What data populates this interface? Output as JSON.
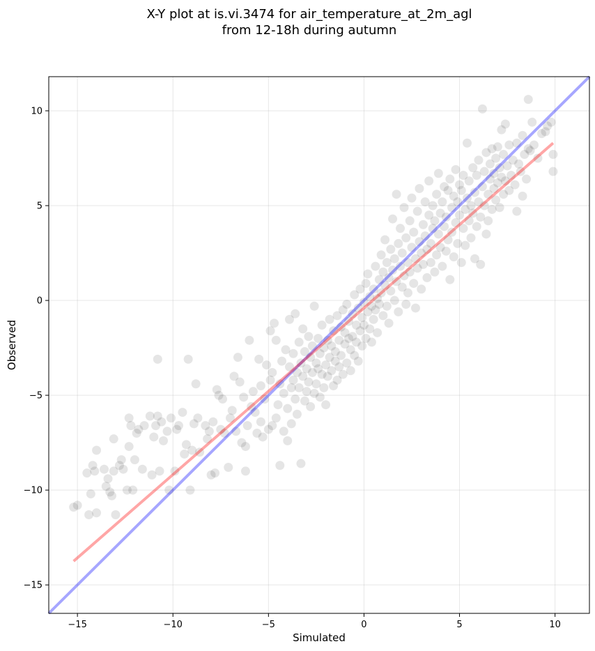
{
  "chart_data": {
    "type": "scatter",
    "title": "X-Y plot at is.vi.3474 for air_temperature_at_2m_agl",
    "subtitle": "from 12-18h during autumn",
    "xlabel": "Simulated",
    "ylabel": "Observed",
    "xlim": [
      -16.5,
      11.8
    ],
    "ylim": [
      -16.5,
      11.8
    ],
    "xticks": [
      -15,
      -10,
      -5,
      0,
      5,
      10
    ],
    "yticks": [
      -15,
      -10,
      -5,
      0,
      5,
      10
    ],
    "xtick_labels": [
      "−15",
      "−10",
      "−5",
      "0",
      "5",
      "10"
    ],
    "ytick_labels": [
      "−15",
      "−10",
      "−5",
      "0",
      "5",
      "10"
    ],
    "grid": true,
    "point_color": "#000000",
    "point_opacity": 0.1,
    "points": [
      [
        -15.2,
        -10.9
      ],
      [
        -15.0,
        -10.8
      ],
      [
        -14.5,
        -9.1
      ],
      [
        -14.4,
        -11.3
      ],
      [
        -14.3,
        -10.2
      ],
      [
        -14.2,
        -8.7
      ],
      [
        -14.1,
        -9.0
      ],
      [
        -14.0,
        -7.9
      ],
      [
        -14.0,
        -11.2
      ],
      [
        -13.6,
        -8.9
      ],
      [
        -13.5,
        -9.8
      ],
      [
        -13.4,
        -9.4
      ],
      [
        -13.3,
        -10.1
      ],
      [
        -13.2,
        -10.3
      ],
      [
        -13.1,
        -9.0
      ],
      [
        -13.1,
        -7.3
      ],
      [
        -13.0,
        -11.3
      ],
      [
        -12.8,
        -8.7
      ],
      [
        -12.7,
        -8.4
      ],
      [
        -12.6,
        -8.9
      ],
      [
        -12.4,
        -10.0
      ],
      [
        -12.3,
        -7.7
      ],
      [
        -12.3,
        -6.2
      ],
      [
        -12.2,
        -6.6
      ],
      [
        -12.1,
        -10.0
      ],
      [
        -12.0,
        -8.4
      ],
      [
        -11.9,
        -7.0
      ],
      [
        -11.8,
        -6.8
      ],
      [
        -11.6,
        -8.9
      ],
      [
        -11.5,
        -6.6
      ],
      [
        -11.2,
        -6.1
      ],
      [
        -11.1,
        -9.2
      ],
      [
        -11.0,
        -7.2
      ],
      [
        -10.9,
        -6.6
      ],
      [
        -10.8,
        -3.1
      ],
      [
        -10.8,
        -6.1
      ],
      [
        -10.7,
        -9.0
      ],
      [
        -10.6,
        -6.4
      ],
      [
        -10.5,
        -7.4
      ],
      [
        -10.3,
        -6.9
      ],
      [
        -10.2,
        -10.0
      ],
      [
        -10.1,
        -6.2
      ],
      [
        -9.9,
        -9.0
      ],
      [
        -9.8,
        -6.8
      ],
      [
        -9.7,
        -6.6
      ],
      [
        -9.5,
        -5.9
      ],
      [
        -9.4,
        -8.1
      ],
      [
        -9.3,
        -7.6
      ],
      [
        -9.2,
        -3.1
      ],
      [
        -9.1,
        -10.0
      ],
      [
        -9.0,
        -7.9
      ],
      [
        -8.9,
        -6.5
      ],
      [
        -8.8,
        -4.4
      ],
      [
        -8.7,
        -6.2
      ],
      [
        -8.6,
        -8.0
      ],
      [
        -8.3,
        -6.6
      ],
      [
        -8.2,
        -7.3
      ],
      [
        -8.1,
        -6.9
      ],
      [
        -8.0,
        -9.2
      ],
      [
        -7.9,
        -6.4
      ],
      [
        -7.8,
        -9.1
      ],
      [
        -7.7,
        -4.7
      ],
      [
        -7.6,
        -5.0
      ],
      [
        -7.5,
        -6.8
      ],
      [
        -7.4,
        -5.2
      ],
      [
        -7.3,
        -7.0
      ],
      [
        -7.1,
        -8.8
      ],
      [
        -7.0,
        -6.2
      ],
      [
        -6.9,
        -5.8
      ],
      [
        -6.8,
        -4.0
      ],
      [
        -6.7,
        -6.9
      ],
      [
        -6.6,
        -3.0
      ],
      [
        -6.5,
        -4.3
      ],
      [
        -6.4,
        -7.5
      ],
      [
        -6.3,
        -5.1
      ],
      [
        -6.2,
        -7.7
      ],
      [
        -6.2,
        -9.0
      ],
      [
        -6.1,
        -6.6
      ],
      [
        -6.0,
        -2.1
      ],
      [
        -5.9,
        -5.6
      ],
      [
        -5.8,
        -4.8
      ],
      [
        -5.7,
        -5.9
      ],
      [
        -5.6,
        -7.0
      ],
      [
        -5.5,
        -3.1
      ],
      [
        -5.4,
        -6.4
      ],
      [
        -5.4,
        -4.5
      ],
      [
        -5.3,
        -7.2
      ],
      [
        -5.2,
        -5.2
      ],
      [
        -5.1,
        -3.4
      ],
      [
        -5.0,
        -6.8
      ],
      [
        -4.9,
        -4.2
      ],
      [
        -4.9,
        -1.6
      ],
      [
        -4.8,
        -6.6
      ],
      [
        -4.8,
        -3.8
      ],
      [
        -4.7,
        -1.2
      ],
      [
        -4.6,
        -6.2
      ],
      [
        -4.6,
        -2.1
      ],
      [
        -4.5,
        -5.5
      ],
      [
        -4.4,
        -4.4
      ],
      [
        -4.4,
        -8.7
      ],
      [
        -4.3,
        -3.2
      ],
      [
        -4.2,
        -6.9
      ],
      [
        -4.2,
        -4.9
      ],
      [
        -4.1,
        -2.6
      ],
      [
        -4.0,
        -5.7
      ],
      [
        -4.0,
        -7.4
      ],
      [
        -3.9,
        -3.5
      ],
      [
        -3.9,
        -1.0
      ],
      [
        -3.8,
        -4.6
      ],
      [
        -3.8,
        -6.5
      ],
      [
        -3.7,
        -2.8
      ],
      [
        -3.7,
        -4.2
      ],
      [
        -3.6,
        -5.2
      ],
      [
        -3.6,
        -0.7
      ],
      [
        -3.5,
        -3.8
      ],
      [
        -3.5,
        -6.0
      ],
      [
        -3.4,
        -2.2
      ],
      [
        -3.4,
        -4.6
      ],
      [
        -3.3,
        -3.3
      ],
      [
        -3.3,
        -8.6
      ],
      [
        -3.2,
        -1.5
      ],
      [
        -3.2,
        -4.0
      ],
      [
        -3.1,
        -5.3
      ],
      [
        -3.1,
        -2.7
      ],
      [
        -3.0,
        -3.6
      ],
      [
        -3.0,
        -4.8
      ],
      [
        -2.9,
        -1.9
      ],
      [
        -2.9,
        -4.3
      ],
      [
        -2.8,
        -3.0
      ],
      [
        -2.8,
        -5.6
      ],
      [
        -2.7,
        -2.4
      ],
      [
        -2.7,
        -3.8
      ],
      [
        -2.6,
        -4.9
      ],
      [
        -2.6,
        -0.3
      ],
      [
        -2.5,
        -3.3
      ],
      [
        -2.5,
        -4.4
      ],
      [
        -2.4,
        -2.0
      ],
      [
        -2.4,
        -3.6
      ],
      [
        -2.3,
        -5.1
      ],
      [
        -2.3,
        -2.8
      ],
      [
        -2.2,
        -3.9
      ],
      [
        -2.2,
        -1.3
      ],
      [
        -2.1,
        -4.6
      ],
      [
        -2.1,
        -2.5
      ],
      [
        -2.0,
        -3.4
      ],
      [
        -2.0,
        -5.5
      ],
      [
        -1.9,
        -2.1
      ],
      [
        -1.9,
        -4.0
      ],
      [
        -1.8,
        -3.0
      ],
      [
        -1.8,
        -1.0
      ],
      [
        -1.7,
        -3.7
      ],
      [
        -1.7,
        -2.4
      ],
      [
        -1.6,
        -4.5
      ],
      [
        -1.6,
        -1.6
      ],
      [
        -1.5,
        -3.2
      ],
      [
        -1.5,
        -2.7
      ],
      [
        -1.4,
        -4.2
      ],
      [
        -1.4,
        -0.8
      ],
      [
        -1.3,
        -2.1
      ],
      [
        -1.3,
        -3.5
      ],
      [
        -1.2,
        -1.4
      ],
      [
        -1.2,
        -2.9
      ],
      [
        -1.1,
        -3.9
      ],
      [
        -1.1,
        -0.5
      ],
      [
        -1.0,
        -2.3
      ],
      [
        -1.0,
        -1.7
      ],
      [
        -0.9,
        -3.3
      ],
      [
        -0.9,
        -0.2
      ],
      [
        -0.8,
        -2.0
      ],
      [
        -0.8,
        -1.1
      ],
      [
        -0.7,
        -2.6
      ],
      [
        -0.7,
        -3.7
      ],
      [
        -0.6,
        -0.7
      ],
      [
        -0.6,
        -1.9
      ],
      [
        -0.5,
        -2.9
      ],
      [
        -0.5,
        0.3
      ],
      [
        -0.4,
        -1.3
      ],
      [
        -0.4,
        -2.2
      ],
      [
        -0.3,
        -0.4
      ],
      [
        -0.3,
        -3.2
      ],
      [
        -0.2,
        -1.6
      ],
      [
        -0.2,
        0.6
      ],
      [
        -0.1,
        -0.9
      ],
      [
        -0.1,
        -2.4
      ],
      [
        0.0,
        -0.1
      ],
      [
        0.0,
        -1.3
      ],
      [
        0.1,
        0.9
      ],
      [
        0.1,
        -2.0
      ],
      [
        0.2,
        -0.6
      ],
      [
        0.2,
        1.4
      ],
      [
        0.3,
        -1.5
      ],
      [
        0.3,
        0.2
      ],
      [
        0.4,
        -0.3
      ],
      [
        0.4,
        -2.2
      ],
      [
        0.5,
        0.6
      ],
      [
        0.5,
        -1.0
      ],
      [
        0.6,
        1.8
      ],
      [
        0.6,
        -0.5
      ],
      [
        0.7,
        0.1
      ],
      [
        0.7,
        -1.7
      ],
      [
        0.8,
        1.1
      ],
      [
        0.8,
        -0.2
      ],
      [
        0.9,
        2.4
      ],
      [
        0.9,
        0.4
      ],
      [
        1.0,
        -0.8
      ],
      [
        1.0,
        1.5
      ],
      [
        1.1,
        0.8
      ],
      [
        1.1,
        3.2
      ],
      [
        1.2,
        -0.3
      ],
      [
        1.2,
        2.0
      ],
      [
        1.3,
        1.2
      ],
      [
        1.3,
        -1.2
      ],
      [
        1.4,
        0.5
      ],
      [
        1.4,
        2.7
      ],
      [
        1.5,
        1.6
      ],
      [
        1.5,
        4.3
      ],
      [
        1.6,
        0.0
      ],
      [
        1.6,
        2.2
      ],
      [
        1.7,
        1.0
      ],
      [
        1.7,
        5.6
      ],
      [
        1.8,
        3.0
      ],
      [
        1.8,
        -0.6
      ],
      [
        1.9,
        1.8
      ],
      [
        1.9,
        3.8
      ],
      [
        2.0,
        0.7
      ],
      [
        2.0,
        2.5
      ],
      [
        2.1,
        4.9
      ],
      [
        2.1,
        1.3
      ],
      [
        2.2,
        -0.2
      ],
      [
        2.2,
        3.3
      ],
      [
        2.3,
        2.0
      ],
      [
        2.3,
        0.4
      ],
      [
        2.4,
        4.2
      ],
      [
        2.4,
        1.5
      ],
      [
        2.5,
        2.8
      ],
      [
        2.5,
        5.4
      ],
      [
        2.6,
        0.9
      ],
      [
        2.6,
        3.6
      ],
      [
        2.7,
        2.2
      ],
      [
        2.7,
        -0.4
      ],
      [
        2.8,
        4.7
      ],
      [
        2.8,
        1.7
      ],
      [
        2.9,
        3.1
      ],
      [
        2.9,
        5.9
      ],
      [
        3.0,
        2.5
      ],
      [
        3.0,
        0.6
      ],
      [
        3.1,
        4.0
      ],
      [
        3.1,
        1.9
      ],
      [
        3.2,
        5.2
      ],
      [
        3.2,
        3.4
      ],
      [
        3.3,
        2.7
      ],
      [
        3.3,
        1.2
      ],
      [
        3.4,
        4.5
      ],
      [
        3.4,
        6.3
      ],
      [
        3.5,
        3.0
      ],
      [
        3.5,
        2.0
      ],
      [
        3.6,
        5.0
      ],
      [
        3.6,
        3.8
      ],
      [
        3.7,
        1.5
      ],
      [
        3.7,
        4.2
      ],
      [
        3.8,
        2.4
      ],
      [
        3.8,
        5.6
      ],
      [
        3.9,
        3.5
      ],
      [
        3.9,
        6.7
      ],
      [
        4.0,
        2.8
      ],
      [
        4.0,
        4.6
      ],
      [
        4.1,
        1.8
      ],
      [
        4.1,
        5.2
      ],
      [
        4.2,
        3.9
      ],
      [
        4.2,
        6.0
      ],
      [
        4.3,
        2.6
      ],
      [
        4.3,
        4.4
      ],
      [
        4.4,
        5.8
      ],
      [
        4.4,
        3.2
      ],
      [
        4.5,
        6.4
      ],
      [
        4.5,
        1.1
      ],
      [
        4.6,
        4.9
      ],
      [
        4.6,
        3.6
      ],
      [
        4.7,
        5.5
      ],
      [
        4.7,
        2.3
      ],
      [
        4.8,
        6.9
      ],
      [
        4.8,
        4.1
      ],
      [
        4.9,
        5.2
      ],
      [
        4.9,
        3.0
      ],
      [
        5.0,
        6.1
      ],
      [
        5.0,
        4.5
      ],
      [
        5.1,
        2.0
      ],
      [
        5.1,
        5.8
      ],
      [
        5.2,
        3.8
      ],
      [
        5.2,
        6.6
      ],
      [
        5.3,
        4.8
      ],
      [
        5.3,
        2.9
      ],
      [
        5.4,
        5.4
      ],
      [
        5.4,
        8.3
      ],
      [
        5.5,
        4.2
      ],
      [
        5.5,
        6.3
      ],
      [
        5.6,
        3.3
      ],
      [
        5.6,
        5.0
      ],
      [
        5.7,
        7.0
      ],
      [
        5.7,
        4.6
      ],
      [
        5.8,
        2.2
      ],
      [
        5.8,
        5.7
      ],
      [
        5.9,
        6.6
      ],
      [
        5.9,
        3.9
      ],
      [
        6.0,
        5.2
      ],
      [
        6.0,
        7.4
      ],
      [
        6.1,
        4.4
      ],
      [
        6.1,
        1.9
      ],
      [
        6.2,
        6.0
      ],
      [
        6.2,
        10.1
      ],
      [
        6.3,
        5.0
      ],
      [
        6.3,
        6.8
      ],
      [
        6.4,
        3.5
      ],
      [
        6.4,
        7.8
      ],
      [
        6.5,
        5.6
      ],
      [
        6.5,
        4.2
      ],
      [
        6.6,
        6.4
      ],
      [
        6.6,
        7.2
      ],
      [
        6.7,
        4.8
      ],
      [
        6.7,
        8.0
      ],
      [
        6.8,
        5.9
      ],
      [
        6.8,
        6.7
      ],
      [
        6.9,
        7.5
      ],
      [
        6.9,
        5.3
      ],
      [
        7.0,
        6.2
      ],
      [
        7.0,
        8.1
      ],
      [
        7.1,
        4.9
      ],
      [
        7.1,
        7.0
      ],
      [
        7.2,
        6.5
      ],
      [
        7.2,
        9.0
      ],
      [
        7.3,
        7.7
      ],
      [
        7.3,
        5.6
      ],
      [
        7.4,
        9.3
      ],
      [
        7.4,
        6.3
      ],
      [
        7.5,
        7.1
      ],
      [
        7.6,
        5.8
      ],
      [
        7.6,
        8.2
      ],
      [
        7.7,
        6.6
      ],
      [
        7.8,
        7.4
      ],
      [
        7.9,
        6.1
      ],
      [
        8.0,
        8.3
      ],
      [
        8.0,
        4.7
      ],
      [
        8.1,
        7.2
      ],
      [
        8.2,
        6.8
      ],
      [
        8.3,
        8.7
      ],
      [
        8.3,
        5.5
      ],
      [
        8.4,
        7.7
      ],
      [
        8.5,
        6.4
      ],
      [
        8.6,
        8.0
      ],
      [
        8.6,
        10.6
      ],
      [
        8.7,
        7.9
      ],
      [
        8.8,
        9.4
      ],
      [
        8.9,
        8.2
      ],
      [
        9.1,
        7.5
      ],
      [
        9.3,
        8.8
      ],
      [
        9.5,
        8.9
      ],
      [
        9.6,
        9.2
      ],
      [
        9.8,
        9.4
      ],
      [
        9.9,
        7.7
      ],
      [
        9.9,
        6.8
      ]
    ],
    "lines": [
      {
        "color": "#0000ff",
        "opacity": 0.35,
        "x": [
          -16.5,
          11.8
        ],
        "y": [
          -16.5,
          11.8
        ]
      },
      {
        "color": "#ff0000",
        "opacity": 0.35,
        "x": [
          -15.2,
          9.9
        ],
        "y": [
          -13.75,
          8.3
        ]
      }
    ]
  }
}
